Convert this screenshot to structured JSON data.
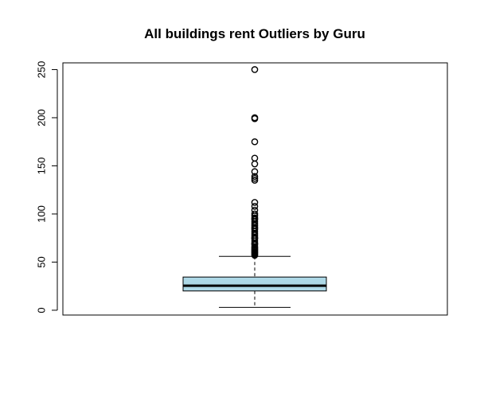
{
  "chart_data": {
    "type": "boxplot",
    "title": "All buildings rent Outliers by Guru",
    "xlabel": "",
    "ylabel": "",
    "ylim": [
      -5,
      257
    ],
    "yticks": [
      0,
      50,
      100,
      150,
      200,
      250
    ],
    "box": {
      "whisker_low": 3,
      "q1": 20,
      "median": 25.5,
      "q3": 34.5,
      "whisker_high": 56
    },
    "outliers": [
      250,
      200,
      199,
      175,
      158,
      152,
      144,
      139,
      137,
      135,
      112,
      108,
      104,
      100,
      98,
      96,
      95,
      94,
      92,
      90,
      88,
      86,
      85,
      84,
      82,
      80,
      78,
      76,
      75,
      74,
      72,
      70,
      69,
      68,
      66,
      65,
      64,
      63,
      62,
      61,
      60,
      59,
      58,
      57
    ],
    "box_fill": "#add8e6",
    "stroke": "#000000"
  }
}
